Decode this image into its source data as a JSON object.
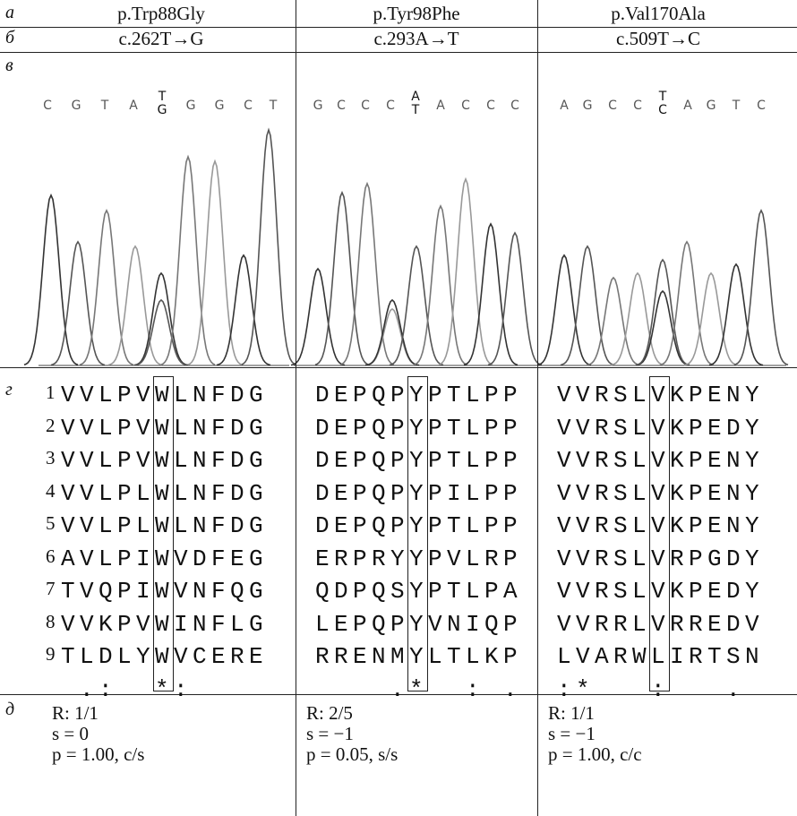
{
  "row_labels": [
    "а",
    "б",
    "в",
    "г",
    "д"
  ],
  "columns": [
    {
      "protein": "p.Trp88Gly",
      "cdna": "c.262T→G",
      "bases": [
        "C",
        "G",
        "T",
        "A",
        {
          "top": "T",
          "bottom": "G"
        },
        "G",
        "G",
        "C",
        "T"
      ],
      "alignment": [
        "VVLPVWLNFDG",
        "VVLPVWLNFDG",
        "VVLPVWLNFDG",
        "VVLPLWLNFDG",
        "VVLPLWLNFDG",
        "AVLPIWVDFEG",
        "TVQPIWVNFQG",
        "VVKPVWINFLG",
        "TLDLYWVCERE"
      ],
      "conservation": " .:  *:",
      "stats": [
        "R: 1/1",
        "s = 0",
        "p = 1.00, c/s"
      ]
    },
    {
      "protein": "p.Tyr98Phe",
      "cdna": "c.293A→T",
      "bases": [
        "G",
        "C",
        "C",
        "C",
        {
          "top": "A",
          "bottom": "T"
        },
        "A",
        "C",
        "C",
        "C"
      ],
      "alignment": [
        "DEPQPYPTLPP",
        "DEPQPYPTLPP",
        "DEPQPYPTLPP",
        "DEPQPYPILPP",
        "DEPQPYPTLPP",
        "ERPRYYPVLRP",
        "QDPQSYPTLPA",
        "LEPQPYVNIQP",
        "RRENMYLTLKP"
      ],
      "conservation": "    .*  : .",
      "stats": [
        "R: 2/5",
        "s = −1",
        "p = 0.05, s/s"
      ]
    },
    {
      "protein": "p.Val170Ala",
      "cdna": "c.509T→C",
      "bases": [
        "A",
        "G",
        "C",
        "C",
        {
          "top": "T",
          "bottom": "C"
        },
        "A",
        "G",
        "T",
        "C"
      ],
      "alignment": [
        "VVRSLVKPENY",
        "VVRSLVKPEDY",
        "VVRSLVKPENY",
        "VVRSLVKPENY",
        "VVRSLVKPENY",
        "VVRSLVRPGDY",
        "VVRSLVKPEDY",
        "VVRRLVRREDV",
        "LVARWLIRTSN"
      ],
      "conservation": ":*   :   .",
      "stats": [
        "R: 1/1",
        "s = −1",
        "p = 1.00, c/c"
      ]
    }
  ],
  "row_numbers": [
    "1",
    "2",
    "3",
    "4",
    "5",
    "6",
    "7",
    "8",
    "9"
  ]
}
